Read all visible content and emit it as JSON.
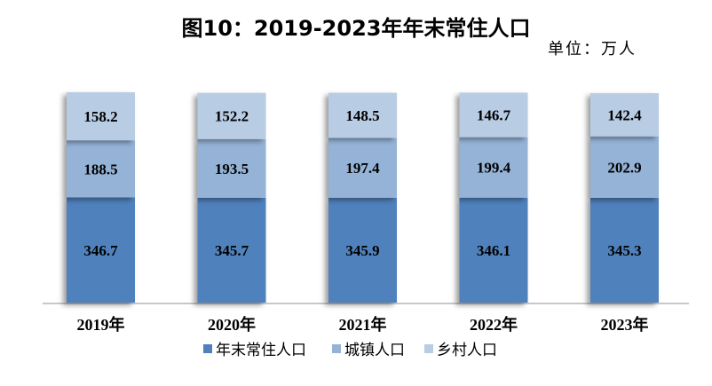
{
  "chart_data": {
    "type": "bar",
    "title": "图10：2019-2023年年末常住人口",
    "unit": "单位：万人",
    "categories": [
      "2019年",
      "2020年",
      "2021年",
      "2022年",
      "2023年"
    ],
    "series": [
      {
        "name": "年末常住人口",
        "values": [
          346.7,
          345.7,
          345.9,
          346.1,
          345.3
        ],
        "color": "#4f81bd"
      },
      {
        "name": "城镇人口",
        "values": [
          188.5,
          193.5,
          197.4,
          199.4,
          202.9
        ],
        "color": "#95b3d7"
      },
      {
        "name": "乡村人口",
        "values": [
          158.2,
          152.2,
          148.5,
          146.7,
          142.4
        ],
        "color": "#b8cce4"
      }
    ],
    "legend_position": "bottom",
    "grid": false
  }
}
